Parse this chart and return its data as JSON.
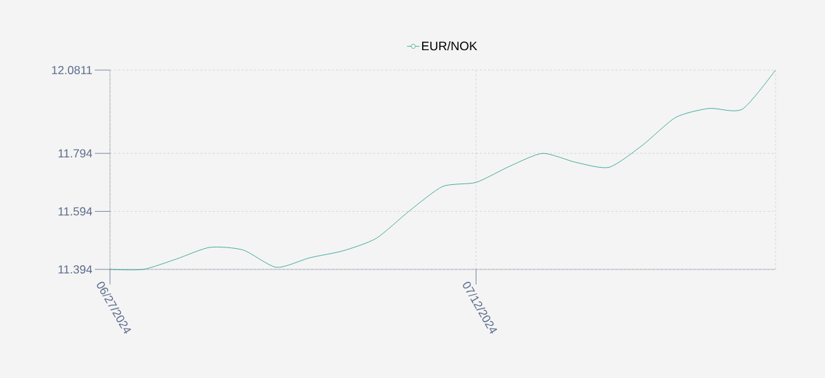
{
  "chart_data": {
    "type": "line",
    "categories": [
      "06/27/2024",
      null,
      null,
      null,
      null,
      null,
      null,
      null,
      null,
      null,
      null,
      "07/12/2024",
      null,
      null,
      null,
      null,
      null,
      null,
      null,
      null,
      null
    ],
    "series": [
      {
        "name": "EUR/NOK",
        "color": "#1a9a84",
        "values": [
          11.394,
          11.394,
          11.43,
          11.47,
          11.461,
          11.401,
          11.434,
          11.458,
          11.501,
          11.596,
          11.68,
          11.694,
          11.749,
          11.794,
          11.763,
          11.746,
          11.822,
          11.918,
          11.949,
          11.946,
          12.0811
        ]
      }
    ],
    "ylim": [
      11.394,
      12.0811
    ],
    "yticks": [
      11.394,
      11.594,
      11.794,
      12.0811
    ],
    "grid": true,
    "legend": "top",
    "marker": "none",
    "line_style": "solid"
  }
}
